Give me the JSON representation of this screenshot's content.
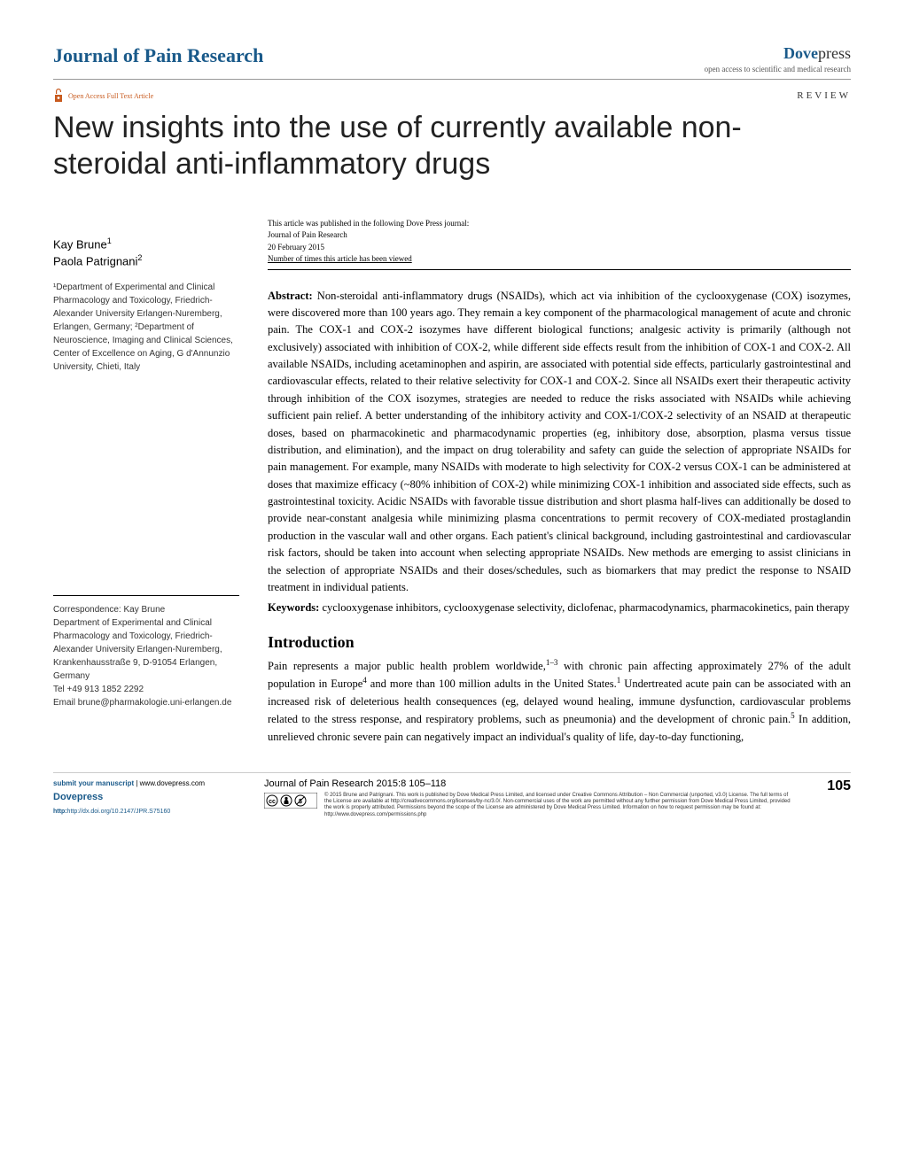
{
  "header": {
    "journal_name": "Journal of Pain Research",
    "publisher_dove": "Dove",
    "publisher_press": "press",
    "publisher_tagline": "open access to scientific and medical research",
    "oa_badge_text": "Open Access Full Text Article",
    "article_type": "REVIEW"
  },
  "title": "New insights into the use of currently available non-steroidal anti-inflammatory drugs",
  "pub_info": {
    "line1": "This article was published in the following Dove Press journal:",
    "line2": "Journal of Pain Research",
    "line3": "20 February 2015",
    "line4": "Number of times this article has been viewed"
  },
  "authors": {
    "a1_name": "Kay Brune",
    "a1_sup": "1",
    "a2_name": "Paola Patrignani",
    "a2_sup": "2"
  },
  "affiliations": "¹Department of Experimental and Clinical Pharmacology and Toxicology, Friedrich-Alexander University Erlangen-Nuremberg, Erlangen, Germany; ²Department of Neuroscience, Imaging and Clinical Sciences, Center of Excellence on Aging, G d'Annunzio University, Chieti, Italy",
  "correspondence": "Correspondence: Kay Brune\nDepartment of Experimental and Clinical Pharmacology and Toxicology, Friedrich-Alexander University Erlangen-Nuremberg, Krankenhausstraße 9, D-91054 Erlangen, Germany\nTel +49 913 1852 2292\nEmail brune@pharmakologie.uni-erlangen.de",
  "abstract": {
    "label": "Abstract:",
    "text": " Non-steroidal anti-inflammatory drugs (NSAIDs), which act via inhibition of the cyclooxygenase (COX) isozymes, were discovered more than 100 years ago. They remain a key component of the pharmacological management of acute and chronic pain. The COX-1 and COX-2 isozymes have different biological functions; analgesic activity is primarily (although not exclusively) associated with inhibition of COX-2, while different side effects result from the inhibition of COX-1 and COX-2. All available NSAIDs, including acetaminophen and aspirin, are associated with potential side effects, particularly gastrointestinal and cardiovascular effects, related to their relative selectivity for COX-1 and COX-2. Since all NSAIDs exert their therapeutic activity through inhibition of the COX isozymes, strategies are needed to reduce the risks associated with NSAIDs while achieving sufficient pain relief. A better understanding of the inhibitory activity and COX-1/COX-2 selectivity of an NSAID at therapeutic doses, based on pharmacokinetic and pharmacodynamic properties (eg, inhibitory dose, absorption, plasma versus tissue distribution, and elimination), and the impact on drug tolerability and safety can guide the selection of appropriate NSAIDs for pain management. For example, many NSAIDs with moderate to high selectivity for COX-2 versus COX-1 can be administered at doses that maximize efficacy (~80% inhibition of COX-2) while minimizing COX-1 inhibition and associated side effects, such as gastrointestinal toxicity. Acidic NSAIDs with favorable tissue distribution and short plasma half-lives can additionally be dosed to provide near-constant analgesia while minimizing plasma concentrations to permit recovery of COX-mediated prostaglandin production in the vascular wall and other organs. Each patient's clinical background, including gastrointestinal and cardiovascular risk factors, should be taken into account when selecting appropriate NSAIDs. New methods are emerging to assist clinicians in the selection of appropriate NSAIDs and their doses/schedules, such as biomarkers that may predict the response to NSAID treatment in individual patients."
  },
  "keywords": {
    "label": "Keywords:",
    "text": " cyclooxygenase inhibitors, cyclooxygenase selectivity, diclofenac, pharmacodynamics, pharmacokinetics, pain therapy"
  },
  "intro": {
    "heading": "Introduction",
    "text_html": "Pain represents a major public health problem worldwide,<sup>1–3</sup> with chronic pain affecting approximately 27% of the adult population in Europe<sup>4</sup> and more than 100 million adults in the United States.<sup>1</sup> Undertreated acute pain can be associated with an increased risk of deleterious health consequences (eg, delayed wound healing, immune dysfunction, cardiovascular problems related to the stress response, and respiratory problems, such as pneumonia) and the development of chronic pain.<sup>5</sup> In addition, unrelieved chronic severe pain can negatively impact an individual's quality of life, day-to-day functioning,"
  },
  "footer": {
    "submit_label": "submit your manuscript",
    "submit_url": " | www.dovepress.com",
    "dovepress": "Dovepress",
    "doi": "http://dx.doi.org/10.2147/JPR.S75160",
    "citation": "Journal of Pain Research 2015:8 105–118",
    "page_num": "105",
    "license": "© 2015 Brune and Patrignani. This work is published by Dove Medical Press Limited, and licensed under Creative Commons Attribution – Non Commercial (unported, v3.0) License. The full terms of the License are available at http://creativecommons.org/licenses/by-nc/3.0/. Non-commercial uses of the work are permitted without any further permission from Dove Medical Press Limited, provided the work is properly attributed. Permissions beyond the scope of the License are administered by Dove Medical Press Limited. Information on how to request permission may be found at: http://www.dovepress.com/permissions.php"
  },
  "colors": {
    "brand_blue": "#1a5a8a",
    "oa_orange": "#c85a1e",
    "text": "#000000",
    "gray": "#555555",
    "border": "#999999"
  },
  "typography": {
    "title_fontsize": 34,
    "body_fontsize": 12.5,
    "journal_fontsize": 22,
    "footer_fontsize": 8
  }
}
